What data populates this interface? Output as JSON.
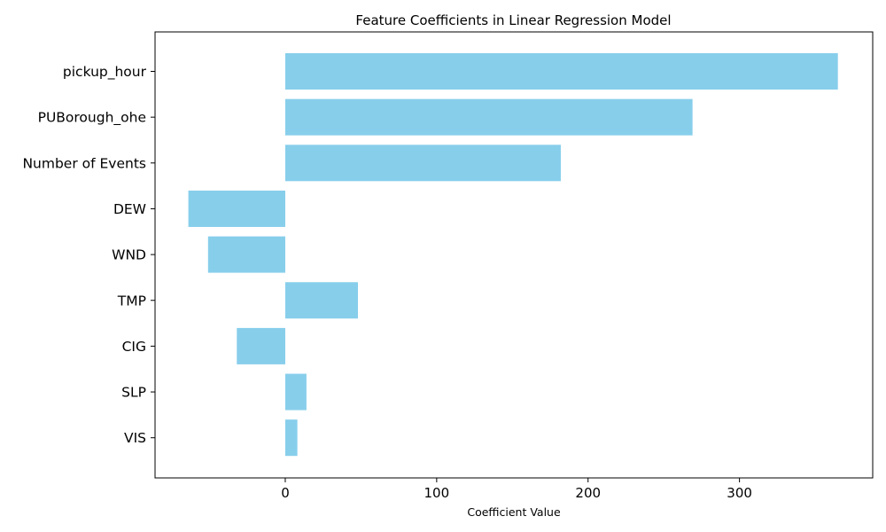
{
  "chart_data": {
    "type": "bar",
    "orientation": "horizontal",
    "title": "Feature Coefficients in Linear Regression Model",
    "xlabel": "Coefficient Value",
    "ylabel": "",
    "categories": [
      "pickup_hour",
      "PUBorough_ohe",
      "Number of Events",
      "DEW",
      "WND",
      "TMP",
      "CIG",
      "SLP",
      "VIS"
    ],
    "values": [
      365,
      269,
      182,
      -64,
      -51,
      48,
      -32,
      14,
      8
    ],
    "xlim": [
      -86,
      388
    ],
    "xticks": [
      0,
      100,
      200,
      300
    ],
    "bar_color": "#87ceeb",
    "grid": false,
    "legend": "none"
  }
}
